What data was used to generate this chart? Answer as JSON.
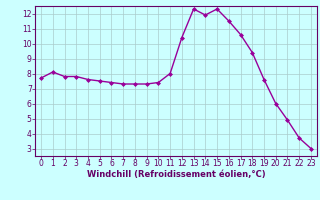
{
  "x": [
    0,
    1,
    2,
    3,
    4,
    5,
    6,
    7,
    8,
    9,
    10,
    11,
    12,
    13,
    14,
    15,
    16,
    17,
    18,
    19,
    20,
    21,
    22,
    23
  ],
  "y": [
    7.7,
    8.1,
    7.8,
    7.8,
    7.6,
    7.5,
    7.4,
    7.3,
    7.3,
    7.3,
    7.4,
    8.0,
    10.4,
    12.3,
    11.9,
    12.3,
    11.5,
    10.6,
    9.4,
    7.6,
    6.0,
    4.9,
    3.7,
    3.0
  ],
  "line_color": "#990099",
  "marker": "D",
  "marker_size": 2,
  "bg_color": "#ccffff",
  "grid_color": "#aacccc",
  "xlabel": "Windchill (Refroidissement éolien,°C)",
  "xlim": [
    -0.5,
    23.5
  ],
  "ylim": [
    2.5,
    12.5
  ],
  "yticks": [
    3,
    4,
    5,
    6,
    7,
    8,
    9,
    10,
    11,
    12
  ],
  "xticks": [
    0,
    1,
    2,
    3,
    4,
    5,
    6,
    7,
    8,
    9,
    10,
    11,
    12,
    13,
    14,
    15,
    16,
    17,
    18,
    19,
    20,
    21,
    22,
    23
  ],
  "font_color": "#660066",
  "spine_color": "#660066",
  "tick_fontsize": 5.5,
  "xlabel_fontsize": 6.0,
  "linewidth": 1.0
}
